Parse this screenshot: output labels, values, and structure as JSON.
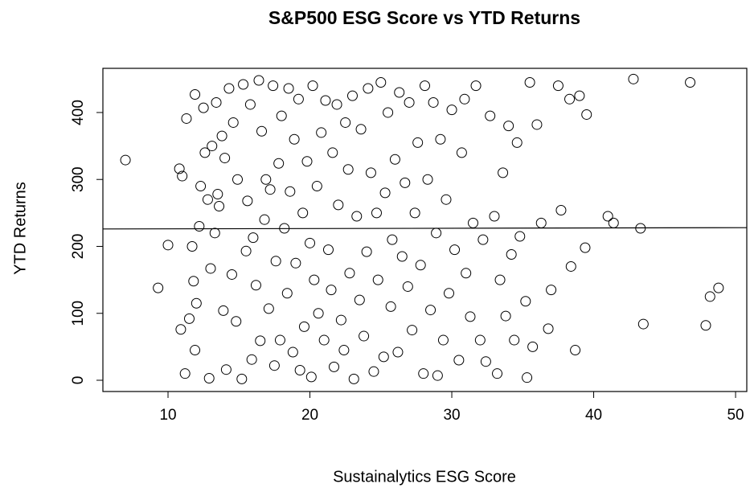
{
  "chart_data": {
    "type": "scatter",
    "title": "S&P500 ESG Score vs YTD Returns",
    "x_label": "Sustainalytics ESG Score",
    "y_label": "YTD Returns",
    "xlim": [
      5.41,
      50.79
    ],
    "ylim": [
      -16.8,
      466
    ],
    "xticks": [
      10,
      20,
      30,
      40,
      50
    ],
    "yticks": [
      0,
      100,
      200,
      300,
      400
    ],
    "color": "#000000",
    "trend_line": {
      "x": [
        5.41,
        50.79
      ],
      "y": [
        226,
        228
      ]
    },
    "x": [
      7,
      9.3,
      10,
      10.8,
      10.9,
      11.2,
      11,
      11.3,
      11.5,
      11.7,
      11.8,
      11.9,
      11.9,
      12,
      12.2,
      12.3,
      12.5,
      12.6,
      12.8,
      12.9,
      13,
      13.1,
      13.3,
      13.4,
      13.5,
      13.6,
      13.8,
      13.9,
      14,
      14.1,
      14.3,
      14.5,
      14.6,
      14.8,
      14.9,
      15.2,
      15.3,
      15.5,
      15.6,
      15.8,
      15.9,
      16,
      16.2,
      16.4,
      16.5,
      16.6,
      16.8,
      16.9,
      17.1,
      17.2,
      17.4,
      17.5,
      17.6,
      17.8,
      17.9,
      18,
      18.2,
      18.4,
      18.5,
      18.6,
      18.8,
      18.9,
      19,
      19.2,
      19.3,
      19.5,
      19.6,
      19.8,
      20,
      20.1,
      20.2,
      20.3,
      20.5,
      20.6,
      20.8,
      21,
      21.1,
      21.3,
      21.5,
      21.6,
      21.7,
      21.9,
      22,
      22.2,
      22.4,
      22.5,
      22.7,
      22.8,
      23,
      23.1,
      23.3,
      23.5,
      23.6,
      23.8,
      24,
      24.1,
      24.3,
      24.5,
      24.7,
      24.8,
      25,
      25.2,
      25.3,
      25.5,
      25.7,
      25.8,
      26,
      26.2,
      26.3,
      26.5,
      26.7,
      26.9,
      27,
      27.2,
      27.4,
      27.6,
      27.8,
      28,
      28.1,
      28.3,
      28.5,
      28.7,
      28.9,
      29,
      29.2,
      29.4,
      29.6,
      29.8,
      30,
      30.2,
      30.5,
      30.7,
      30.9,
      31,
      31.3,
      31.5,
      31.7,
      32,
      32.2,
      32.4,
      32.7,
      33,
      33.2,
      33.4,
      33.6,
      33.8,
      34,
      34.2,
      34.4,
      34.6,
      34.8,
      35.2,
      35.3,
      35.5,
      35.7,
      36,
      36.3,
      36.8,
      37,
      37.5,
      37.7,
      38.3,
      38.4,
      38.7,
      39,
      39.4,
      39.5,
      41,
      41.4,
      42.8,
      43.3,
      43.5,
      46.8,
      47.9,
      48.2,
      48.8
    ],
    "y": [
      329,
      138,
      202,
      316,
      76,
      10,
      305,
      391,
      92,
      200,
      148,
      427,
      45,
      115,
      230,
      290,
      407,
      340,
      270,
      3,
      167,
      350,
      220,
      415,
      278,
      260,
      365,
      104,
      332,
      16,
      436,
      158,
      385,
      88,
      300,
      2,
      442,
      193,
      268,
      412,
      31,
      213,
      142,
      448,
      59,
      372,
      240,
      300,
      107,
      285,
      440,
      22,
      178,
      324,
      60,
      395,
      227,
      130,
      436,
      282,
      42,
      360,
      175,
      420,
      15,
      250,
      80,
      327,
      205,
      5,
      440,
      150,
      290,
      100,
      370,
      60,
      418,
      195,
      135,
      340,
      20,
      412,
      262,
      90,
      45,
      385,
      315,
      160,
      425,
      2,
      245,
      120,
      375,
      66,
      192,
      436,
      310,
      13,
      250,
      150,
      445,
      35,
      280,
      400,
      110,
      210,
      330,
      42,
      430,
      185,
      295,
      140,
      415,
      75,
      250,
      355,
      172,
      10,
      440,
      300,
      105,
      415,
      220,
      7,
      360,
      60,
      270,
      130,
      404,
      195,
      30,
      340,
      420,
      160,
      95,
      235,
      440,
      60,
      210,
      28,
      395,
      245,
      10,
      150,
      310,
      96,
      380,
      188,
      60,
      355,
      215,
      118,
      4,
      445,
      50,
      382,
      235,
      77,
      135,
      440,
      254,
      420,
      170,
      45,
      425,
      198,
      397,
      245,
      235,
      450,
      227,
      84,
      445,
      82,
      125,
      138
    ]
  }
}
